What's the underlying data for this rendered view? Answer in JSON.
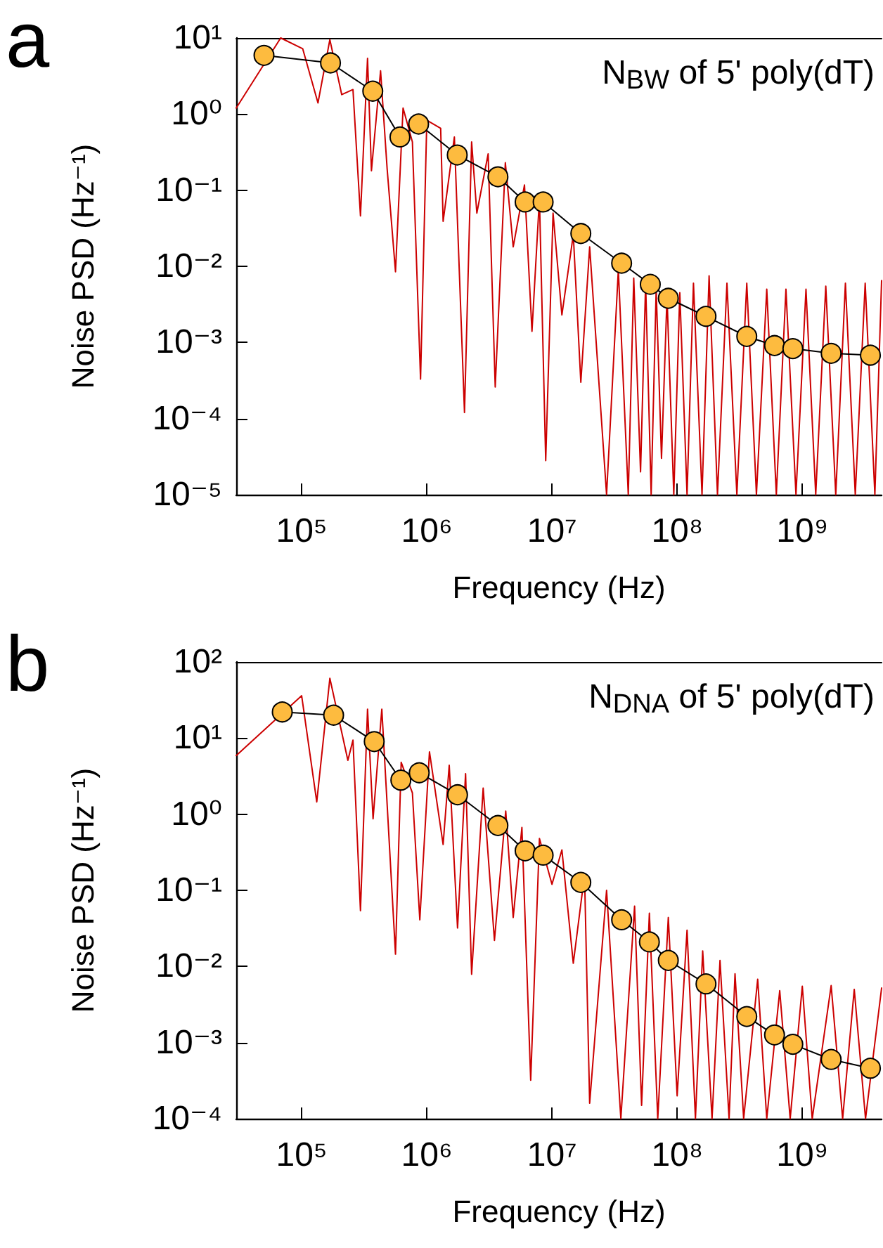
{
  "chart_data": [
    {
      "type": "line",
      "annotations": [
        "a",
        "N$_{BW}$ of 5' poly(dT)"
      ],
      "xlabel": "Frequency (Hz)",
      "ylabel": "Noise PSD (Hz⁻¹)",
      "log": "xy",
      "xlim": [
        30000,
        4300000000
      ],
      "xticks": [
        {
          "value": 100000,
          "label": "10⁵"
        },
        {
          "value": 1000000,
          "label": "10⁶"
        },
        {
          "value": 10000000,
          "label": "10⁷"
        },
        {
          "value": 100000000,
          "label": "10⁸"
        },
        {
          "value": 1000000000,
          "label": "10⁹"
        }
      ],
      "ylim": [
        1e-05,
        10
      ],
      "yticks": [
        {
          "value": 1e-05,
          "label": "10⁻⁵"
        },
        {
          "value": 0.0001,
          "label": "10⁻⁴"
        },
        {
          "value": 0.001,
          "label": "10⁻³"
        },
        {
          "value": 0.01,
          "label": "10⁻²"
        },
        {
          "value": 0.1,
          "label": "10⁻¹"
        },
        {
          "value": 1,
          "label": "10⁰"
        },
        {
          "value": 10,
          "label": "10¹"
        }
      ],
      "series": [
        {
          "color": "#cc0000",
          "marker": "none",
          "x": [
            30000,
            68000,
            102000,
            135000,
            168000,
            209000,
            257000,
            295000,
            336000,
            361000,
            427000,
            482000,
            562000,
            646000,
            767000,
            891000,
            1000000,
            1290000,
            1350000,
            1660000,
            2000000,
            2280000,
            2510000,
            3090000,
            3520000,
            4240000,
            4900000,
            6030000,
            6920000,
            7940000,
            8910000,
            10200000,
            12000000,
            14800000,
            17000000,
            20000000,
            27300000,
            33900000,
            40700000,
            45000000,
            51000000,
            56000000,
            62000000,
            68000000,
            75000000,
            83000000,
            94000000,
            105000000,
            120000000,
            135000000,
            158000000,
            180000000,
            210000000,
            250000000,
            300000000,
            360000000,
            430000000,
            520000000,
            620000000,
            740000000,
            890000000,
            1070000000,
            1280000000,
            1540000000,
            1850000000,
            2210000000,
            2650000000,
            3180000000,
            3800000000,
            4300000000
          ],
          "values": [
            1.2,
            10,
            7.2,
            1.4,
            9.5,
            1.8,
            2.1,
            0.046,
            5.4,
            0.18,
            3.7,
            0.19,
            0.0085,
            1.2,
            0.43,
            0.00033,
            0.83,
            0.65,
            0.039,
            0.5,
            0.00012,
            0.43,
            0.05,
            0.3,
            0.00026,
            0.23,
            0.018,
            0.117,
            0.0014,
            0.078,
            2.8e-05,
            0.05,
            0.0023,
            0.026,
            0.0003,
            0.018,
            1e-05,
            0.009,
            1e-05,
            0.007,
            2e-05,
            0.006,
            1e-05,
            0.005,
            3e-05,
            0.004,
            1e-05,
            0.0045,
            1e-05,
            0.006,
            1e-05,
            0.0075,
            1e-05,
            0.006,
            1e-05,
            0.006,
            1e-05,
            0.005,
            1e-05,
            0.005,
            1e-05,
            0.005,
            1e-05,
            0.0055,
            1e-05,
            0.006,
            1e-05,
            0.006,
            1e-05,
            0.0065
          ]
        },
        {
          "color": "#fdbb3f",
          "marker": "circle",
          "x": [
            50000,
            170000,
            370000,
            610000,
            860000,
            1750000,
            3700000,
            6100000,
            8500000,
            17000000,
            36000000,
            61000000,
            85000000,
            170000000,
            360000000,
            600000000,
            840000000,
            1700000000,
            3500000000
          ],
          "values": [
            5.9,
            4.7,
            2.0,
            0.5,
            0.74,
            0.29,
            0.15,
            0.07,
            0.07,
            0.027,
            0.011,
            0.0058,
            0.0038,
            0.0022,
            0.0012,
            0.00091,
            0.00083,
            0.00072,
            0.00068
          ]
        }
      ]
    },
    {
      "type": "line",
      "annotations": [
        "b",
        "N$_{DNA}$ of 5' poly(dT)"
      ],
      "xlabel": "Frequency (Hz)",
      "ylabel": "Noise PSD (Hz⁻¹)",
      "log": "xy",
      "xlim": [
        30000,
        4300000000
      ],
      "xticks": [
        {
          "value": 100000,
          "label": "10⁵"
        },
        {
          "value": 1000000,
          "label": "10⁶"
        },
        {
          "value": 10000000,
          "label": "10⁷"
        },
        {
          "value": 100000000,
          "label": "10⁸"
        },
        {
          "value": 1000000000,
          "label": "10⁹"
        }
      ],
      "ylim": [
        0.0001,
        100
      ],
      "yticks": [
        {
          "value": 0.0001,
          "label": "10⁻⁴"
        },
        {
          "value": 0.001,
          "label": "10⁻³"
        },
        {
          "value": 0.01,
          "label": "10⁻²"
        },
        {
          "value": 0.1,
          "label": "10⁻¹"
        },
        {
          "value": 1,
          "label": "10⁰"
        },
        {
          "value": 10,
          "label": "10¹"
        },
        {
          "value": 100,
          "label": "10²"
        }
      ],
      "series": [
        {
          "color": "#cc0000",
          "marker": "none",
          "x": [
            30000,
            100000,
            132000,
            168000,
            234000,
            257000,
            295000,
            336000,
            372000,
            437000,
            562000,
            624000,
            767000,
            879000,
            1050000,
            1350000,
            1510000,
            1760000,
            2040000,
            2280000,
            2820000,
            3470000,
            4270000,
            4900000,
            5750000,
            6760000,
            7940000,
            10000000,
            12000000,
            14800000,
            18200000,
            20000000,
            27300000,
            35500000,
            45700000,
            52000000,
            60000000,
            70000000,
            85000000,
            100000000,
            120000000,
            140000000,
            160000000,
            190000000,
            220000000,
            260000000,
            290000000,
            340000000,
            440000000,
            520000000,
            660000000,
            800000000,
            1000000000,
            1200000000,
            1700000000,
            2100000000,
            2600000000,
            3200000000,
            4300000000
          ],
          "values": [
            5.9,
            36,
            1.45,
            61,
            5.1,
            9.4,
            0.054,
            24,
            0.87,
            24,
            0.0145,
            4.8,
            1.9,
            0.041,
            6.6,
            0.4,
            4.4,
            0.032,
            3.4,
            0.0079,
            2.2,
            0.022,
            1.1,
            0.044,
            0.67,
            0.00032,
            0.48,
            0.12,
            0.34,
            0.011,
            0.16,
            0.00016,
            0.1,
            0.0001,
            0.062,
            0.00015,
            0.05,
            0.0001,
            0.044,
            0.0002,
            0.03,
            0.0001,
            0.016,
            0.0001,
            0.012,
            0.0001,
            0.008,
            0.0001,
            0.0068,
            0.0001,
            0.0048,
            0.0001,
            0.0055,
            0.0001,
            0.0056,
            0.0001,
            0.005,
            0.0001,
            0.0052
          ]
        },
        {
          "color": "#fdbb3f",
          "marker": "circle",
          "x": [
            70000,
            180000,
            380000,
            620000,
            870000,
            1760000,
            3700000,
            6100000,
            8500000,
            17000000,
            36000000,
            60000000,
            85000000,
            170000000,
            360000000,
            600000000,
            840000000,
            1700000000,
            3500000000
          ],
          "values": [
            22,
            20,
            9.0,
            2.8,
            3.5,
            1.8,
            0.71,
            0.33,
            0.29,
            0.127,
            0.041,
            0.021,
            0.012,
            0.0059,
            0.0022,
            0.00126,
            0.00095,
            0.0006,
            0.00046
          ]
        }
      ]
    }
  ]
}
